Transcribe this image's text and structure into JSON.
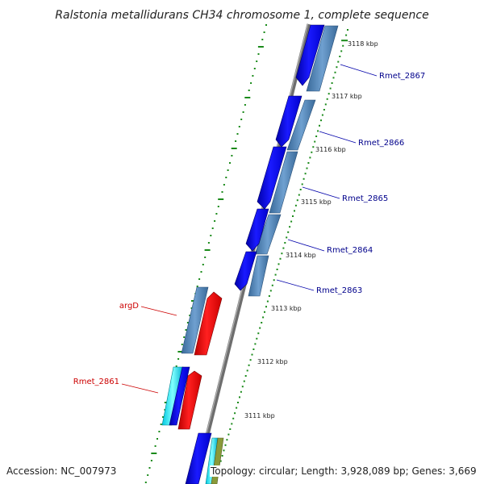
{
  "title": "Ralstonia metallidurans CH34 chromosome 1, complete sequence",
  "footer": {
    "accession": "Accession: NC_007973",
    "topology": "Topology: circular; Length: 3,928,089 bp; Genes: 3,669"
  },
  "colors": {
    "backbone": "#808080",
    "forward_gene": "#0000ee",
    "reverse_gene": "#4a7fb5",
    "red_gene": "#ee0000",
    "cyan_gene": "#00e0f0",
    "ticks": "#008000",
    "blue_label": "#00008b",
    "red_label": "#cc0000"
  },
  "ruler_labels": [
    "3118 kbp",
    "3117 kbp",
    "3116 kbp",
    "3115 kbp",
    "3114 kbp",
    "3113 kbp",
    "3112 kbp",
    "3111 kbp"
  ],
  "gene_labels": [
    {
      "text": "Rmet_2867",
      "color": "blue"
    },
    {
      "text": "Rmet_2866",
      "color": "blue"
    },
    {
      "text": "Rmet_2865",
      "color": "blue"
    },
    {
      "text": "Rmet_2864",
      "color": "blue"
    },
    {
      "text": "Rmet_2863",
      "color": "blue"
    },
    {
      "text": "argD",
      "color": "red"
    },
    {
      "text": "Rmet_2861",
      "color": "red"
    }
  ]
}
